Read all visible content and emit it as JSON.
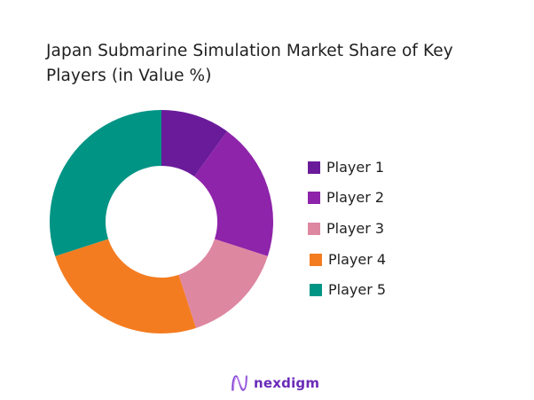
{
  "title": {
    "line1": "Japan Submarine Simulation Market Share of Key",
    "line2": "Players (in Value %)"
  },
  "chart_data": {
    "type": "pie",
    "subtype": "donut",
    "title": "Japan Submarine Simulation Market Share of Key Players (in Value %)",
    "categories": [
      "Player 1",
      "Player 2",
      "Player 3",
      "Player 4",
      "Player 5"
    ],
    "values": [
      10,
      20,
      15,
      25,
      30
    ],
    "colors": [
      "#6a1b9a",
      "#8e24aa",
      "#de87a1",
      "#f47c20",
      "#009485"
    ],
    "start_angle": "12 o'clock",
    "direction": "clockwise",
    "legend_position": "right",
    "data_labels": false
  },
  "legend": {
    "items": [
      {
        "label": "Player 1",
        "color": "#6a1b9a"
      },
      {
        "label": "Player 2",
        "color": "#8e24aa"
      },
      {
        "label": "Player 3",
        "color": "#de87a1"
      },
      {
        "label": "Player 4",
        "color": "#f47c20"
      },
      {
        "label": "Player 5",
        "color": "#009485"
      }
    ]
  },
  "logo": {
    "text": "nexdigm",
    "icon": "nexdigm-wave-icon",
    "color": "#6b2bb8"
  }
}
